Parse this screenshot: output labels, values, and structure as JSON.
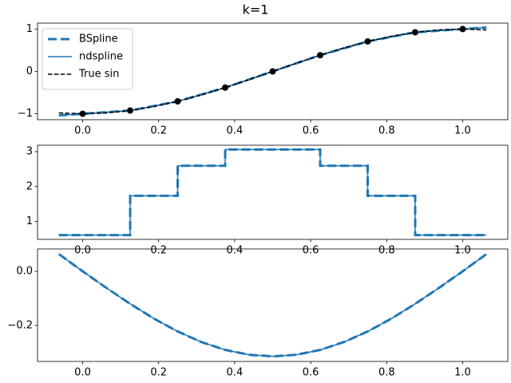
{
  "title": "k=1",
  "chart_data": [
    {
      "type": "line",
      "xlim": [
        -0.11875,
        1.11875
      ],
      "xticks": [
        {
          "value": 0,
          "label": "0.0"
        },
        0.2,
        0.4,
        0.6,
        0.8,
        {
          "value": 1,
          "label": "1.0"
        }
      ],
      "ylim": [
        -1.14,
        1.14
      ],
      "yticks": [
        {
          "value": -1,
          "label": "−1"
        },
        0,
        1
      ],
      "legend": "upper left",
      "series": [
        {
          "name": "BSpline",
          "color": "#1f77b4",
          "style": "dashed",
          "width": 3,
          "x": [
            -0.0625,
            0,
            0.125,
            0.25,
            0.375,
            0.5,
            0.625,
            0.75,
            0.875,
            1,
            1.0625
          ],
          "values": [
            -1.038,
            -1,
            -0.9239,
            -0.7071,
            -0.3827,
            0,
            0.3827,
            0.7071,
            0.9239,
            1,
            1.038
          ]
        },
        {
          "name": "ndspline",
          "color": "#1f77b4",
          "style": "solid",
          "width": 1.5,
          "x": [
            -0.0625,
            0,
            0.125,
            0.25,
            0.375,
            0.5,
            0.625,
            0.75,
            0.875,
            1,
            1.0625
          ],
          "values": [
            -1.038,
            -1,
            -0.9239,
            -0.7071,
            -0.3827,
            0,
            0.3827,
            0.7071,
            0.9239,
            1,
            1.038
          ]
        },
        {
          "name": "True sin",
          "color": "#000000",
          "style": "dashed",
          "width": 1.5,
          "x": [
            -0.0625,
            0,
            0.0625,
            0.125,
            0.1875,
            0.25,
            0.3125,
            0.375,
            0.4375,
            0.5,
            0.5625,
            0.625,
            0.6875,
            0.75,
            0.8125,
            0.875,
            0.9375,
            1,
            1.0625
          ],
          "values": [
            -0.9808,
            -1,
            -0.9808,
            -0.9239,
            -0.8315,
            -0.7071,
            -0.5556,
            -0.3827,
            -0.1951,
            0,
            0.1951,
            0.3827,
            0.5556,
            0.7071,
            0.8315,
            0.9239,
            0.9808,
            1,
            0.9808
          ]
        },
        {
          "color": "#000000",
          "marker": "o",
          "x": [
            0,
            0.125,
            0.25,
            0.375,
            0.5,
            0.625,
            0.75,
            0.875,
            1
          ],
          "values": [
            -1,
            -0.9239,
            -0.7071,
            -0.3827,
            0,
            0.3827,
            0.7071,
            0.9239,
            1
          ]
        }
      ]
    },
    {
      "type": "line",
      "xlim": [
        -0.11875,
        1.11875
      ],
      "xticks": [
        {
          "value": 0,
          "label": "0.0"
        },
        0.2,
        0.4,
        0.6,
        0.8,
        {
          "value": 1,
          "label": "1.0"
        }
      ],
      "ylim": [
        0.486,
        3.184
      ],
      "yticks": [
        1,
        2,
        3
      ],
      "series": [
        {
          "color": "#1f77b4",
          "style": "solid",
          "width": 1.5,
          "x": [
            -0.0625,
            0.125,
            0.125,
            0.25,
            0.25,
            0.375,
            0.375,
            0.625,
            0.625,
            0.75,
            0.75,
            0.875,
            0.875,
            1.0625
          ],
          "values": [
            0.609,
            0.609,
            1.734,
            1.734,
            2.595,
            2.595,
            3.061,
            3.061,
            2.595,
            2.595,
            1.734,
            1.734,
            0.609,
            0.609
          ]
        },
        {
          "color": "#1f77b4",
          "style": "dashed",
          "width": 3,
          "x": [
            -0.0625,
            0.125,
            0.125,
            0.25,
            0.25,
            0.375,
            0.375,
            0.625,
            0.625,
            0.75,
            0.75,
            0.875,
            0.875,
            1.0625
          ],
          "values": [
            0.609,
            0.609,
            1.734,
            1.734,
            2.595,
            2.595,
            3.061,
            3.061,
            2.595,
            2.595,
            1.734,
            1.734,
            0.609,
            0.609
          ]
        }
      ]
    },
    {
      "type": "line",
      "xlim": [
        -0.11875,
        1.11875
      ],
      "xticks": [
        {
          "value": 0,
          "label": "0.0"
        },
        0.2,
        0.4,
        0.6,
        0.8,
        {
          "value": 1,
          "label": "1.0"
        }
      ],
      "ylim": [
        -0.333,
        0.0826
      ],
      "yticks": [
        {
          "value": -0.2,
          "label": "−0.2"
        },
        {
          "value": 0,
          "label": "0.0"
        }
      ],
      "series": [
        {
          "color": "#1f77b4",
          "style": "solid",
          "width": 1.5,
          "x": [
            -0.0625,
            0,
            0.0625,
            0.125,
            0.1875,
            0.25,
            0.3125,
            0.375,
            0.4375,
            0.5,
            0.5625,
            0.625,
            0.6875,
            0.75,
            0.8125,
            0.875,
            0.9375,
            1,
            1.0625
          ],
          "values": [
            0.0637,
            0,
            -0.0613,
            -0.1202,
            -0.1746,
            -0.2222,
            -0.2613,
            -0.2903,
            -0.3082,
            -0.3142,
            -0.3082,
            -0.2903,
            -0.2613,
            -0.2222,
            -0.1746,
            -0.1202,
            -0.0613,
            0,
            0.0637
          ]
        },
        {
          "color": "#1f77b4",
          "style": "dashed",
          "width": 3,
          "x": [
            -0.0625,
            0,
            0.0625,
            0.125,
            0.1875,
            0.25,
            0.3125,
            0.375,
            0.4375,
            0.5,
            0.5625,
            0.625,
            0.6875,
            0.75,
            0.8125,
            0.875,
            0.9375,
            1,
            1.0625
          ],
          "values": [
            0.0637,
            0,
            -0.0613,
            -0.1202,
            -0.1746,
            -0.2222,
            -0.2613,
            -0.2903,
            -0.3082,
            -0.3142,
            -0.3082,
            -0.2903,
            -0.2613,
            -0.2222,
            -0.1746,
            -0.1202,
            -0.0613,
            0,
            0.0637
          ]
        }
      ]
    }
  ]
}
